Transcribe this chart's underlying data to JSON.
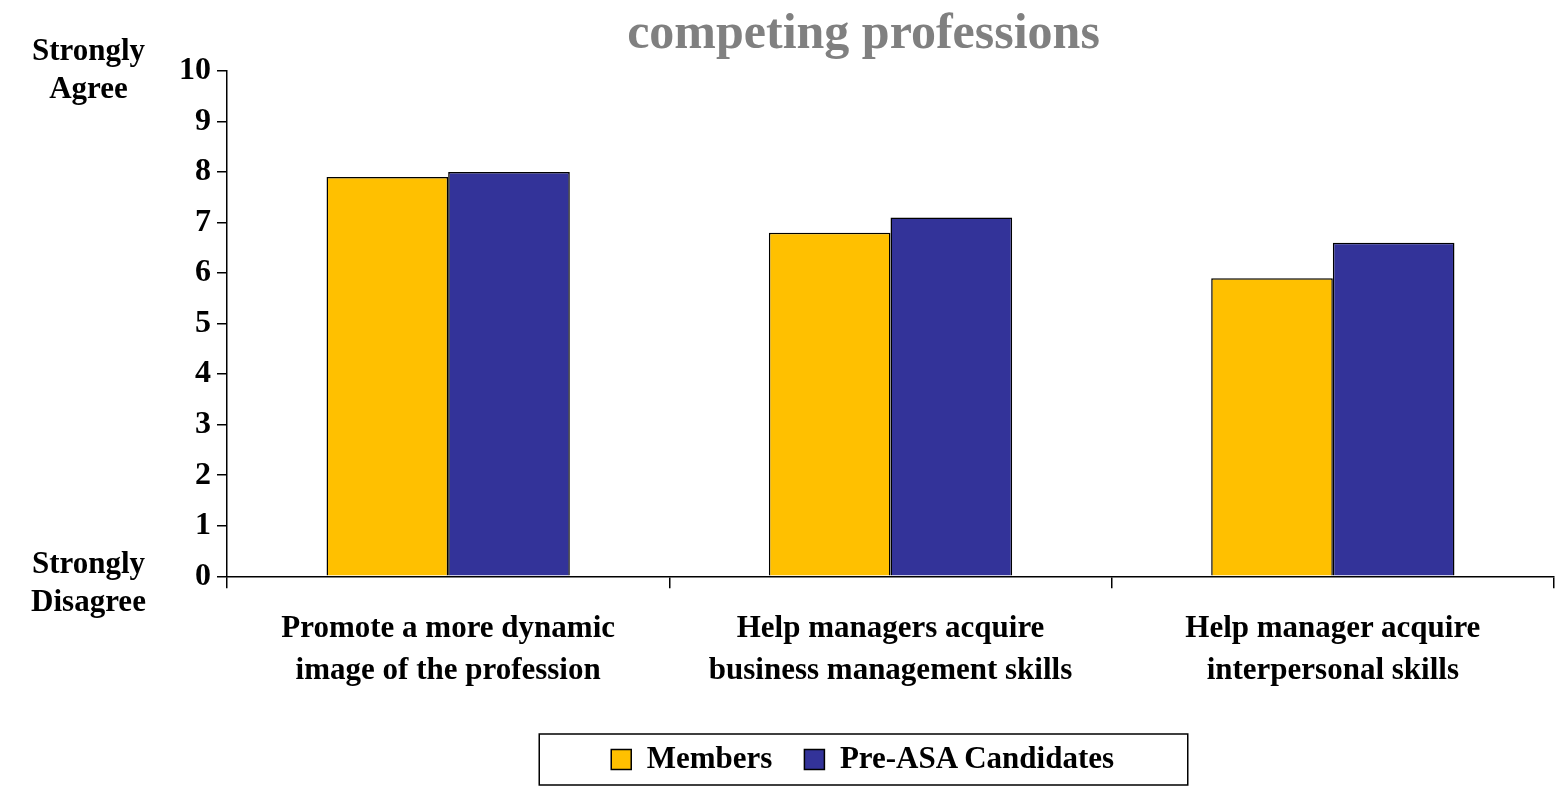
{
  "chart_data": {
    "type": "bar",
    "title": "competing professions",
    "categories": [
      "Promote a more dynamic image of the profession",
      "Help managers acquire business management skills",
      "Help manager acquire interpersonal skills"
    ],
    "series": [
      {
        "name": "Members",
        "color": "#ffc000",
        "values": [
          7.9,
          6.8,
          5.9
        ]
      },
      {
        "name": "Pre-ASA Candidates",
        "color": "#333399",
        "values": [
          8.0,
          7.1,
          6.6
        ]
      }
    ],
    "ylim": [
      0,
      10
    ],
    "yticks": [
      0,
      1,
      2,
      3,
      4,
      5,
      6,
      7,
      8,
      9,
      10
    ],
    "legend": "bottom",
    "annotations": [
      "Strongly Agree",
      "Strongly Disagree"
    ]
  }
}
